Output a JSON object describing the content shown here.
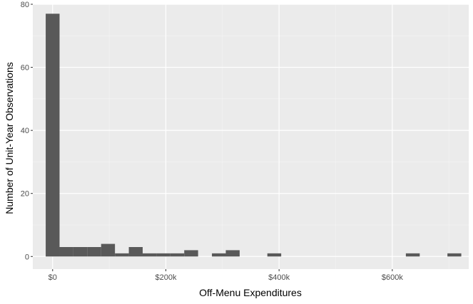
{
  "chart_data": {
    "type": "bar",
    "title": "",
    "xlabel": "Off-Menu Expenditures",
    "ylabel": "Number of Unit-Year Observations",
    "xlim": [
      -35000,
      735000
    ],
    "ylim": [
      -4,
      80
    ],
    "x_ticks": [
      {
        "value": 0,
        "label": "$0"
      },
      {
        "value": 200000,
        "label": "$200k"
      },
      {
        "value": 400000,
        "label": "$400k"
      },
      {
        "value": 600000,
        "label": "$600k"
      }
    ],
    "y_ticks": [
      {
        "value": 0,
        "label": "0"
      },
      {
        "value": 20,
        "label": "20"
      },
      {
        "value": 40,
        "label": "40"
      },
      {
        "value": 60,
        "label": "60"
      },
      {
        "value": 80,
        "label": "80"
      }
    ],
    "bin_width": 24470,
    "bins": [
      {
        "x_start": -12235,
        "x_end": 12235,
        "count": 77
      },
      {
        "x_start": 12235,
        "x_end": 36705,
        "count": 3
      },
      {
        "x_start": 36705,
        "x_end": 61175,
        "count": 3
      },
      {
        "x_start": 61175,
        "x_end": 85645,
        "count": 3
      },
      {
        "x_start": 85645,
        "x_end": 110115,
        "count": 4
      },
      {
        "x_start": 110115,
        "x_end": 134585,
        "count": 1
      },
      {
        "x_start": 134585,
        "x_end": 159055,
        "count": 3
      },
      {
        "x_start": 159055,
        "x_end": 183525,
        "count": 1
      },
      {
        "x_start": 183525,
        "x_end": 207995,
        "count": 1
      },
      {
        "x_start": 207995,
        "x_end": 232465,
        "count": 1
      },
      {
        "x_start": 232465,
        "x_end": 256935,
        "count": 2
      },
      {
        "x_start": 281405,
        "x_end": 305875,
        "count": 1
      },
      {
        "x_start": 305875,
        "x_end": 330345,
        "count": 2
      },
      {
        "x_start": 379285,
        "x_end": 403755,
        "count": 1
      },
      {
        "x_start": 623985,
        "x_end": 648455,
        "count": 1
      },
      {
        "x_start": 697395,
        "x_end": 721865,
        "count": 1
      }
    ],
    "grid": true,
    "colors": {
      "panel": "#ebebeb",
      "grid_major": "#ffffff",
      "grid_minor": "#f5f5f5",
      "bar": "#595959"
    }
  }
}
